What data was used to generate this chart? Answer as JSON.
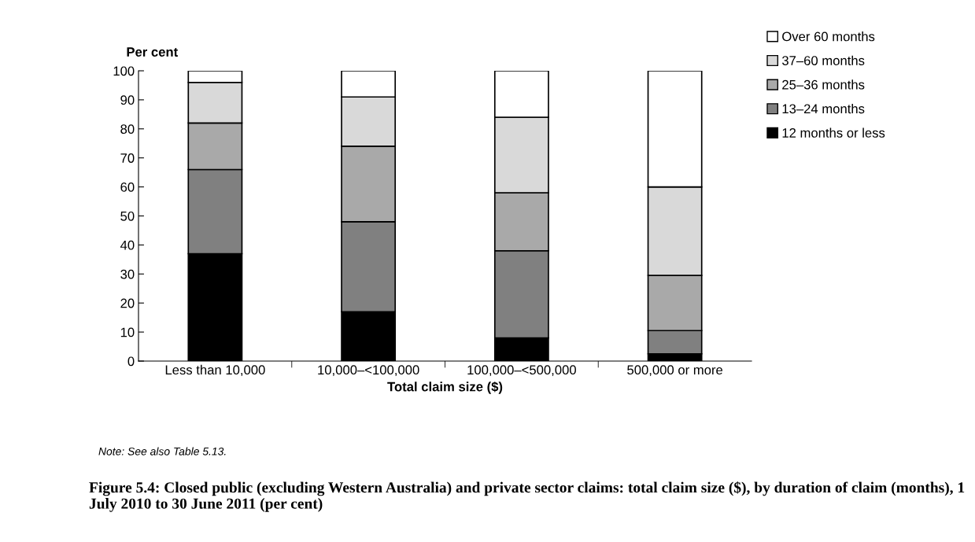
{
  "chart_data": {
    "type": "bar",
    "stacked": true,
    "title": "Figure 5.4: Closed public (excluding Western Australia) and private sector claims: total claim size ($), by duration of claim (months), 1 July 2010 to 30 June 2011 (per cent)",
    "xlabel": "Total claim size ($)",
    "ylabel": "Per cent",
    "categories": [
      "Less than 10,000",
      "10,000–<100,000",
      "100,000–<500,000",
      "500,000 or more"
    ],
    "series": [
      {
        "name": "12 months or less",
        "color": "#000000",
        "values": [
          37,
          17,
          8,
          2.5
        ]
      },
      {
        "name": "13–24 months",
        "color": "#808080",
        "values": [
          29,
          31,
          30,
          8
        ]
      },
      {
        "name": "25–36 months",
        "color": "#a9a9a9",
        "values": [
          16,
          26,
          20,
          19
        ]
      },
      {
        "name": "37–60 months",
        "color": "#d9d9d9",
        "values": [
          14,
          17,
          26,
          30.5
        ]
      },
      {
        "name": "Over 60 months",
        "color": "#ffffff",
        "values": [
          4,
          9,
          16,
          40
        ]
      }
    ],
    "ylim": [
      0,
      100
    ],
    "yticks": [
      0,
      10,
      20,
      30,
      40,
      50,
      60,
      70,
      80,
      90,
      100
    ],
    "grid": false,
    "legend": "top right",
    "annotations": [
      "Note: See also Table 5.13."
    ]
  }
}
